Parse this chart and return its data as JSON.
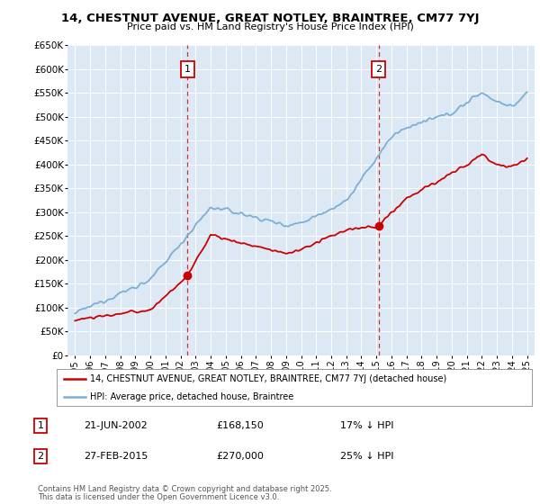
{
  "title": "14, CHESTNUT AVENUE, GREAT NOTLEY, BRAINTREE, CM77 7YJ",
  "subtitle": "Price paid vs. HM Land Registry's House Price Index (HPI)",
  "legend_line1": "14, CHESTNUT AVENUE, GREAT NOTLEY, BRAINTREE, CM77 7YJ (detached house)",
  "legend_line2": "HPI: Average price, detached house, Braintree",
  "marker1_date": "21-JUN-2002",
  "marker1_price": "£168,150",
  "marker1_text": "17% ↓ HPI",
  "marker2_date": "27-FEB-2015",
  "marker2_price": "£270,000",
  "marker2_text": "25% ↓ HPI",
  "marker1_x": 2002.47,
  "marker2_x": 2015.15,
  "footnote1": "Contains HM Land Registry data © Crown copyright and database right 2025.",
  "footnote2": "This data is licensed under the Open Government Licence v3.0.",
  "price_color": "#cc0000",
  "hpi_color": "#7bafd4",
  "plot_bg_color": "#dde8f5",
  "ylim_max": 650000,
  "xlim": [
    1994.5,
    2025.5
  ],
  "yticks": [
    0,
    50000,
    100000,
    150000,
    200000,
    250000,
    300000,
    350000,
    400000,
    450000,
    500000,
    550000,
    600000,
    650000
  ],
  "ytick_labels": [
    "£0",
    "£50K",
    "£100K",
    "£150K",
    "£200K",
    "£250K",
    "£300K",
    "£350K",
    "£400K",
    "£450K",
    "£500K",
    "£550K",
    "£600K",
    "£650K"
  ],
  "xticks": [
    1995,
    1996,
    1997,
    1998,
    1999,
    2000,
    2001,
    2002,
    2003,
    2004,
    2005,
    2006,
    2007,
    2008,
    2009,
    2010,
    2011,
    2012,
    2013,
    2014,
    2015,
    2016,
    2017,
    2018,
    2019,
    2020,
    2021,
    2022,
    2023,
    2024,
    2025
  ]
}
